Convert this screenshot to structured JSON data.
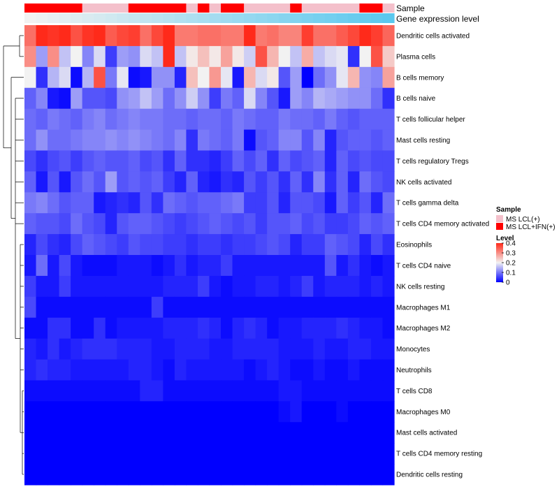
{
  "chart_data": {
    "type": "heatmap",
    "title": "",
    "color_scale": {
      "min_color": "#0000ff",
      "mid_color": "#f2f2f2",
      "max_color": "#ff2a1a",
      "mid_value": 0.2,
      "max_value": 0.4
    },
    "annotations": {
      "sample_label": "Sample",
      "gene_label": "Gene expression level",
      "sample_groups": [
        "MS LCL(+)",
        "MS LCL+IFN(+)"
      ],
      "sample_colors": [
        "#f4c0cb",
        "#ff0000"
      ],
      "sample_assignment": [
        1,
        1,
        1,
        1,
        1,
        0,
        0,
        0,
        0,
        1,
        1,
        1,
        1,
        1,
        0,
        1,
        0,
        1,
        1,
        0,
        0,
        0,
        0,
        1,
        0,
        0,
        0,
        0,
        0,
        1,
        1,
        0
      ],
      "gene_gradient": [
        "#f2f2f2",
        "#5ac8ee"
      ]
    },
    "rows": [
      {
        "label": "Dendritic cells activated",
        "values": [
          0.33,
          0.4,
          0.39,
          0.41,
          0.36,
          0.39,
          0.4,
          0.35,
          0.37,
          0.38,
          0.33,
          0.37,
          0.4,
          0.32,
          0.32,
          0.33,
          0.33,
          0.32,
          0.32,
          0.4,
          0.32,
          0.33,
          0.31,
          0.31,
          0.38,
          0.33,
          0.33,
          0.35,
          0.37,
          0.41,
          0.38,
          0.34
        ]
      },
      {
        "label": "Plasma cells",
        "values": [
          0.3,
          0.13,
          0.3,
          0.16,
          0.2,
          0.11,
          0.18,
          0.05,
          0.13,
          0.12,
          0.18,
          0.16,
          0.4,
          0.16,
          0.21,
          0.25,
          0.21,
          0.28,
          0.21,
          0.17,
          0.36,
          0.26,
          0.2,
          0.16,
          0.27,
          0.16,
          0.18,
          0.19,
          0.04,
          0.2,
          0.36,
          0.24
        ]
      },
      {
        "label": "B cells memory",
        "values": [
          0.2,
          0.04,
          0.15,
          0.18,
          0.01,
          0.15,
          0.36,
          0.1,
          0.19,
          0.01,
          0.02,
          0.12,
          0.12,
          0.03,
          0.25,
          0.2,
          0.29,
          0.19,
          0.02,
          0.26,
          0.18,
          0.21,
          0.07,
          0.13,
          0.0,
          0.09,
          0.12,
          0.19,
          0.26,
          0.12,
          0.11,
          0.28
        ]
      },
      {
        "label": "B cells naive",
        "values": [
          0.08,
          0.11,
          0.02,
          0.01,
          0.13,
          0.07,
          0.07,
          0.06,
          0.12,
          0.13,
          0.16,
          0.13,
          0.09,
          0.12,
          0.17,
          0.12,
          0.05,
          0.1,
          0.08,
          0.18,
          0.11,
          0.07,
          0.02,
          0.13,
          0.11,
          0.15,
          0.14,
          0.13,
          0.12,
          0.12,
          0.09,
          0.04
        ]
      },
      {
        "label": "T cells follicular helper",
        "values": [
          0.09,
          0.08,
          0.1,
          0.09,
          0.08,
          0.1,
          0.11,
          0.09,
          0.1,
          0.11,
          0.1,
          0.1,
          0.09,
          0.09,
          0.08,
          0.09,
          0.09,
          0.08,
          0.1,
          0.09,
          0.08,
          0.08,
          0.1,
          0.09,
          0.09,
          0.08,
          0.1,
          0.08,
          0.07,
          0.08,
          0.08,
          0.08
        ]
      },
      {
        "label": "Mast cells resting",
        "values": [
          0.09,
          0.12,
          0.09,
          0.09,
          0.1,
          0.11,
          0.11,
          0.12,
          0.11,
          0.12,
          0.11,
          0.1,
          0.09,
          0.11,
          0.04,
          0.1,
          0.09,
          0.08,
          0.1,
          0.01,
          0.07,
          0.08,
          0.11,
          0.11,
          0.07,
          0.11,
          0.03,
          0.07,
          0.08,
          0.08,
          0.07,
          0.08
        ]
      },
      {
        "label": "T cells regulatory  Tregs",
        "values": [
          0.06,
          0.04,
          0.06,
          0.07,
          0.05,
          0.07,
          0.08,
          0.07,
          0.07,
          0.08,
          0.06,
          0.07,
          0.04,
          0.08,
          0.04,
          0.04,
          0.03,
          0.05,
          0.08,
          0.06,
          0.08,
          0.04,
          0.08,
          0.06,
          0.07,
          0.08,
          0.03,
          0.08,
          0.06,
          0.07,
          0.06,
          0.06
        ]
      },
      {
        "label": "NK cells activated",
        "values": [
          0.08,
          0.02,
          0.07,
          0.02,
          0.07,
          0.09,
          0.07,
          0.13,
          0.07,
          0.08,
          0.07,
          0.08,
          0.05,
          0.03,
          0.08,
          0.03,
          0.02,
          0.04,
          0.03,
          0.07,
          0.05,
          0.07,
          0.04,
          0.08,
          0.04,
          0.11,
          0.04,
          0.08,
          0.03,
          0.09,
          0.07,
          0.06
        ]
      },
      {
        "label": "T cells gamma delta",
        "values": [
          0.1,
          0.11,
          0.09,
          0.07,
          0.08,
          0.08,
          0.02,
          0.03,
          0.04,
          0.03,
          0.07,
          0.04,
          0.09,
          0.08,
          0.07,
          0.08,
          0.08,
          0.09,
          0.1,
          0.05,
          0.05,
          0.07,
          0.03,
          0.07,
          0.07,
          0.06,
          0.02,
          0.08,
          0.05,
          0.07,
          0.03,
          0.09
        ]
      },
      {
        "label": "T cells CD4 memory activated",
        "values": [
          0.08,
          0.07,
          0.07,
          0.06,
          0.09,
          0.07,
          0.06,
          0.03,
          0.07,
          0.08,
          0.08,
          0.07,
          0.06,
          0.05,
          0.06,
          0.07,
          0.08,
          0.07,
          0.06,
          0.07,
          0.05,
          0.07,
          0.07,
          0.08,
          0.06,
          0.07,
          0.05,
          0.05,
          0.06,
          0.08,
          0.07,
          0.08
        ]
      },
      {
        "label": "Eosinophils",
        "values": [
          0.03,
          0.06,
          0.04,
          0.03,
          0.06,
          0.08,
          0.07,
          0.06,
          0.05,
          0.07,
          0.06,
          0.06,
          0.05,
          0.05,
          0.04,
          0.05,
          0.05,
          0.04,
          0.05,
          0.05,
          0.06,
          0.07,
          0.06,
          0.03,
          0.05,
          0.05,
          0.08,
          0.07,
          0.06,
          0.03,
          0.06,
          0.04
        ]
      },
      {
        "label": "T cells CD4 naive",
        "values": [
          0.02,
          0.09,
          0.02,
          0.06,
          0.02,
          0.01,
          0.01,
          0.01,
          0.02,
          0.02,
          0.02,
          0.01,
          0.02,
          0.04,
          0.02,
          0.03,
          0.03,
          0.05,
          0.02,
          0.02,
          0.02,
          0.02,
          0.02,
          0.02,
          0.02,
          0.02,
          0.07,
          0.02,
          0.04,
          0.02,
          0.01,
          0.02
        ]
      },
      {
        "label": "NK cells resting",
        "values": [
          0.05,
          0.02,
          0.02,
          0.05,
          0.02,
          0.02,
          0.02,
          0.02,
          0.02,
          0.02,
          0.02,
          0.02,
          0.03,
          0.03,
          0.03,
          0.05,
          0.02,
          0.01,
          0.02,
          0.02,
          0.03,
          0.03,
          0.02,
          0.03,
          0.05,
          0.02,
          0.03,
          0.03,
          0.03,
          0.02,
          0.03,
          0.02
        ]
      },
      {
        "label": "Macrophages M1",
        "values": [
          0.06,
          0.01,
          0.01,
          0.01,
          0.01,
          0.01,
          0.01,
          0.01,
          0.01,
          0.01,
          0.01,
          0.05,
          0.01,
          0.01,
          0.01,
          0.01,
          0.01,
          0.01,
          0.01,
          0.01,
          0.01,
          0.01,
          0.01,
          0.01,
          0.01,
          0.01,
          0.01,
          0.01,
          0.01,
          0.01,
          0.01,
          0.01
        ]
      },
      {
        "label": "Macrophages M2",
        "values": [
          0.01,
          0.01,
          0.04,
          0.04,
          0.01,
          0.01,
          0.04,
          0.01,
          0.02,
          0.02,
          0.02,
          0.02,
          0.03,
          0.03,
          0.03,
          0.04,
          0.03,
          0.01,
          0.03,
          0.04,
          0.03,
          0.01,
          0.02,
          0.02,
          0.03,
          0.03,
          0.03,
          0.04,
          0.03,
          0.02,
          0.02,
          0.01
        ]
      },
      {
        "label": "Monocytes",
        "values": [
          0.03,
          0.02,
          0.04,
          0.02,
          0.03,
          0.04,
          0.04,
          0.04,
          0.03,
          0.03,
          0.03,
          0.02,
          0.02,
          0.03,
          0.03,
          0.03,
          0.02,
          0.02,
          0.03,
          0.03,
          0.03,
          0.03,
          0.02,
          0.02,
          0.02,
          0.03,
          0.02,
          0.02,
          0.03,
          0.03,
          0.02,
          0.02
        ]
      },
      {
        "label": "Neutrophils",
        "values": [
          0.03,
          0.04,
          0.03,
          0.03,
          0.02,
          0.02,
          0.02,
          0.02,
          0.02,
          0.03,
          0.03,
          0.02,
          0.01,
          0.03,
          0.02,
          0.02,
          0.02,
          0.02,
          0.02,
          0.01,
          0.02,
          0.03,
          0.02,
          0.01,
          0.01,
          0.02,
          0.01,
          0.01,
          0.02,
          0.01,
          0.01,
          0.01
        ]
      },
      {
        "label": "T cells CD8",
        "values": [
          0.01,
          0.01,
          0.01,
          0.01,
          0.01,
          0.01,
          0.01,
          0.01,
          0.01,
          0.01,
          0.03,
          0.03,
          0.01,
          0.01,
          0.01,
          0.01,
          0.01,
          0.01,
          0.01,
          0.01,
          0.01,
          0.01,
          0.02,
          0.02,
          0.01,
          0.01,
          0.01,
          0.01,
          0.01,
          0.01,
          0.01,
          0.01
        ]
      },
      {
        "label": "Macrophages M0",
        "values": [
          0.0,
          0.0,
          0.0,
          0.0,
          0.0,
          0.0,
          0.0,
          0.0,
          0.0,
          0.0,
          0.0,
          0.0,
          0.0,
          0.0,
          0.0,
          0.0,
          0.0,
          0.0,
          0.0,
          0.0,
          0.0,
          0.0,
          0.01,
          0.02,
          0.0,
          0.0,
          0.0,
          0.01,
          0.0,
          0.0,
          0.0,
          0.0
        ]
      },
      {
        "label": "Mast cells activated",
        "values": [
          0.0,
          0.0,
          0.0,
          0.0,
          0.0,
          0.0,
          0.0,
          0.0,
          0.0,
          0.0,
          0.0,
          0.0,
          0.0,
          0.0,
          0.0,
          0.0,
          0.0,
          0.0,
          0.0,
          0.0,
          0.0,
          0.0,
          0.0,
          0.0,
          0.0,
          0.0,
          0.0,
          0.0,
          0.0,
          0.0,
          0.0,
          0.0
        ]
      },
      {
        "label": "T cells CD4 memory resting",
        "values": [
          0.0,
          0.0,
          0.0,
          0.0,
          0.0,
          0.0,
          0.0,
          0.0,
          0.0,
          0.0,
          0.0,
          0.0,
          0.0,
          0.0,
          0.0,
          0.0,
          0.0,
          0.0,
          0.0,
          0.0,
          0.0,
          0.0,
          0.0,
          0.0,
          0.0,
          0.0,
          0.0,
          0.0,
          0.0,
          0.0,
          0.0,
          0.0
        ]
      },
      {
        "label": "Dendritic cells resting",
        "values": [
          0.0,
          0.0,
          0.0,
          0.0,
          0.0,
          0.0,
          0.0,
          0.0,
          0.0,
          0.0,
          0.0,
          0.0,
          0.0,
          0.0,
          0.0,
          0.0,
          0.0,
          0.0,
          0.0,
          0.0,
          0.0,
          0.0,
          0.0,
          0.0,
          0.0,
          0.0,
          0.0,
          0.0,
          0.0,
          0.0,
          0.0,
          0.0
        ]
      }
    ],
    "dendrogram": {
      "side": "left",
      "leaf_order": "rows"
    },
    "legends": {
      "sample": {
        "title": "Sample",
        "entries": [
          "MS LCL(+)",
          "MS LCL+IFN(+)"
        ]
      },
      "level": {
        "title": "Level",
        "ticks": [
          0.4,
          0.3,
          0.2,
          0.1,
          0
        ],
        "tick_labels": [
          "0.4",
          "0.3",
          "0.2",
          "0.1",
          "0"
        ]
      }
    }
  }
}
